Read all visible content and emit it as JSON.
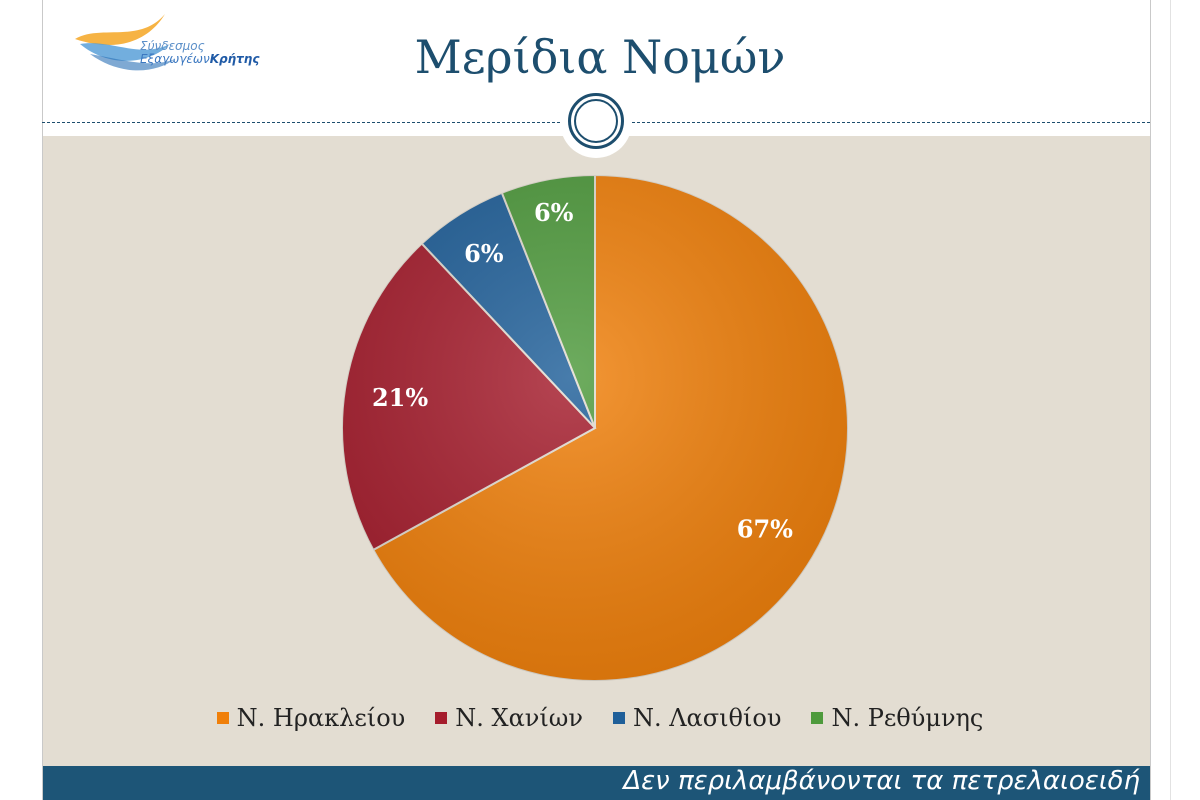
{
  "logo": {
    "line1": "Σύνδεσμος",
    "line2_prefix": "Εξαγωγέων",
    "line2_bold": "Κρήτης"
  },
  "page": {
    "title": "Μερίδια Νομών",
    "footer_note": "Δεν περιλαμβάνονται τα πετρελαιοειδή"
  },
  "chart_data": {
    "type": "pie",
    "title": "",
    "categories": [
      "Ν. Ηρακλείου",
      "Ν. Χανίων",
      "Ν. Λασιθίου",
      "Ν. Ρεθύμνης"
    ],
    "values": [
      67,
      21,
      6,
      6
    ],
    "labels": [
      "67%",
      "21%",
      "6%",
      "6%"
    ],
    "colors": [
      "#f07f09",
      "#a51c2c",
      "#1f5f99",
      "#4e9a3c"
    ],
    "legend": "bottom"
  }
}
